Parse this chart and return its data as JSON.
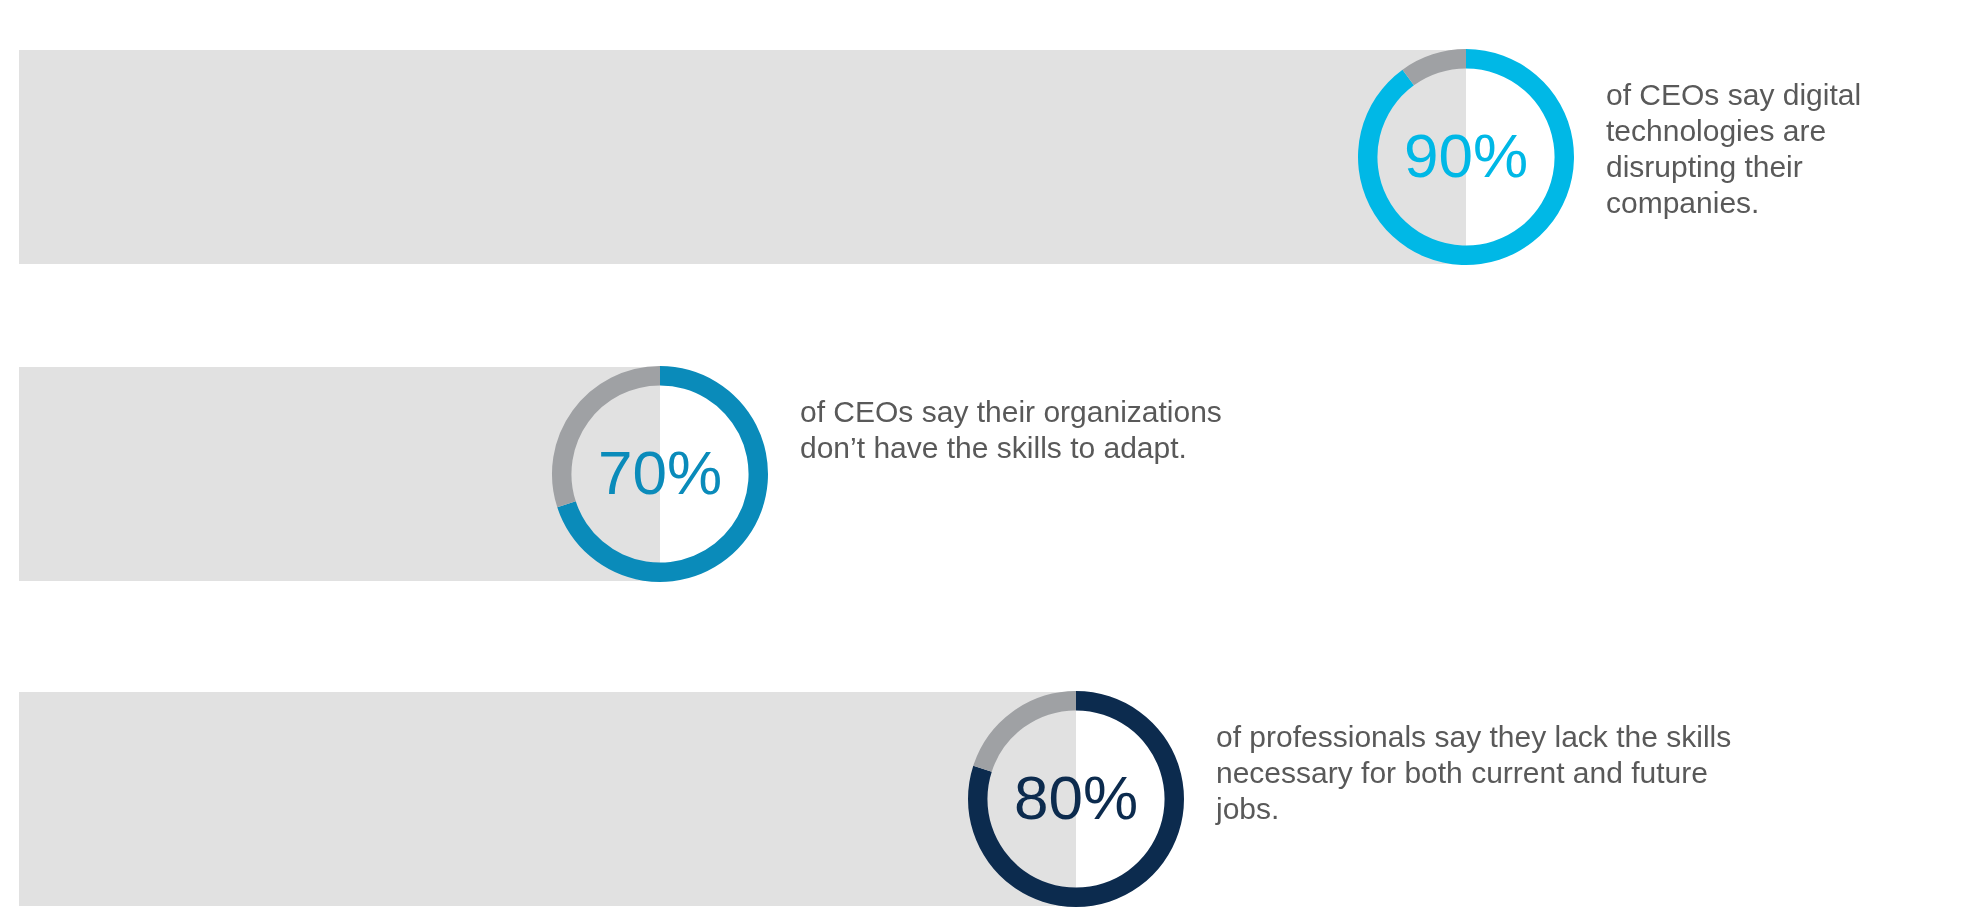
{
  "chart_data": [
    {
      "type": "donut",
      "categories": [
        null,
        null
      ],
      "values": [
        90,
        10
      ],
      "colors": [
        "#00b8e6",
        "#9fa1a4"
      ],
      "value_labels": [
        "90%",
        null
      ],
      "annotations": [
        "of CEOs say digital technologies are disrupting their companies."
      ]
    },
    {
      "type": "donut",
      "categories": [
        null,
        null
      ],
      "values": [
        70,
        30
      ],
      "colors": [
        "#0a8bba",
        "#9fa1a4"
      ],
      "value_labels": [
        "70%",
        null
      ],
      "annotations": [
        "of CEOs say their organizations don’t have the skills to adapt."
      ]
    },
    {
      "type": "donut",
      "categories": [
        null,
        null
      ],
      "values": [
        80,
        20
      ],
      "colors": [
        "#0c2b4e",
        "#9fa1a4"
      ],
      "value_labels": [
        "80%",
        null
      ],
      "annotations": [
        "of professionals say they lack the skills necessary for both current and future jobs."
      ]
    }
  ]
}
